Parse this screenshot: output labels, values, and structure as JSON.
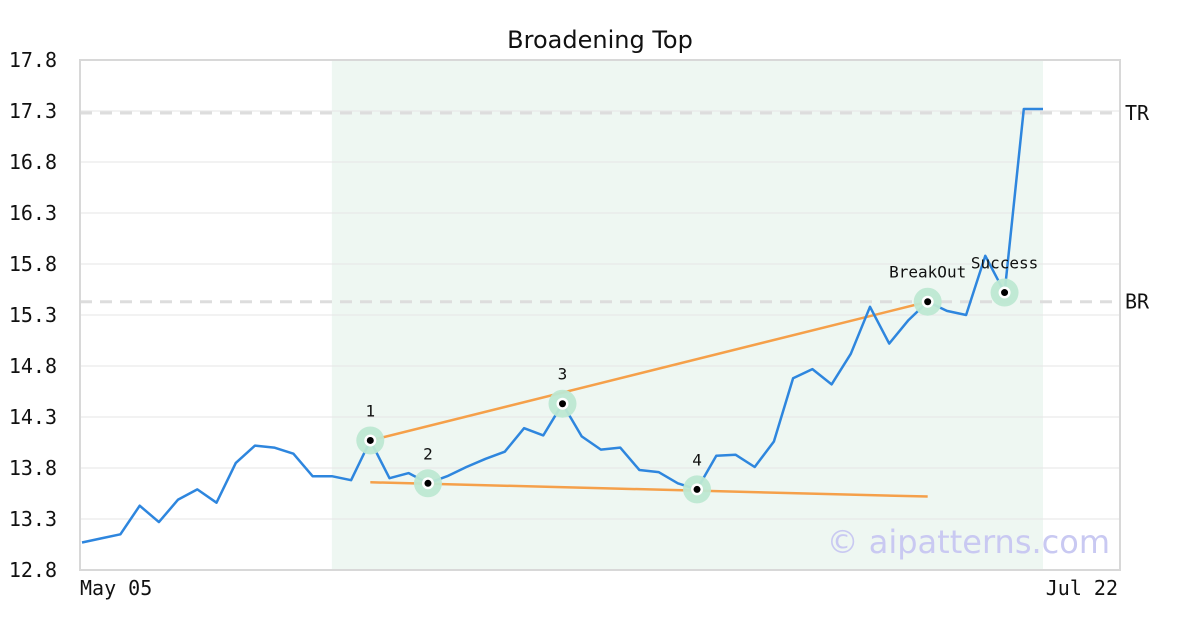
{
  "chart_data": {
    "type": "line",
    "title": "Broadening Top",
    "xlabel": "",
    "ylabel": "",
    "x_tick_labels": [
      "May 05",
      "Jul 22"
    ],
    "ylim": [
      12.8,
      17.8
    ],
    "y_ticks": [
      12.8,
      13.3,
      13.8,
      14.3,
      14.8,
      15.3,
      15.8,
      16.3,
      16.8,
      17.3,
      17.8
    ],
    "grid": true,
    "series": [
      {
        "values": [
          13.07,
          13.11,
          13.15,
          13.43,
          13.27,
          13.49,
          13.59,
          13.46,
          13.85,
          14.02,
          14.0,
          13.94,
          13.72,
          13.72,
          13.68,
          14.07,
          13.7,
          13.75,
          13.65,
          13.72,
          13.81,
          13.89,
          13.96,
          14.19,
          14.12,
          14.43,
          14.11,
          13.98,
          14.0,
          13.78,
          13.76,
          13.65,
          13.59,
          13.92,
          13.93,
          13.81,
          14.06,
          14.68,
          14.77,
          14.62,
          14.92,
          15.38,
          15.02,
          15.25,
          15.43,
          15.34,
          15.3,
          15.88,
          15.52,
          17.32,
          17.32
        ]
      }
    ],
    "shaded_region": {
      "x_start": 13,
      "x_end": 50
    },
    "reference_lines": [
      {
        "label": "TR",
        "y": 17.28
      },
      {
        "label": "BR",
        "y": 15.43
      }
    ],
    "trendlines": [
      {
        "x1": 15,
        "y1": 14.07,
        "x2": 44,
        "y2": 15.43
      },
      {
        "x1": 15,
        "y1": 13.66,
        "x2": 44,
        "y2": 13.52
      }
    ],
    "markers": [
      {
        "label": "1",
        "x": 15,
        "y": 14.07
      },
      {
        "label": "2",
        "x": 18,
        "y": 13.65
      },
      {
        "label": "3",
        "x": 25,
        "y": 14.43
      },
      {
        "label": "4",
        "x": 32,
        "y": 13.59
      },
      {
        "label": "BreakOut",
        "x": 44,
        "y": 15.43
      },
      {
        "label": "Success",
        "x": 48,
        "y": 15.52
      }
    ],
    "watermark": "© aipatterns.com",
    "colors": {
      "line": "#2e86de",
      "trendline": "#f5a04a",
      "shade": "#eef7f2",
      "marker_halo": "#bde8d2",
      "reference": "#dddddd",
      "grid": "#e6e6e6",
      "frame": "#d8d8d8"
    }
  }
}
